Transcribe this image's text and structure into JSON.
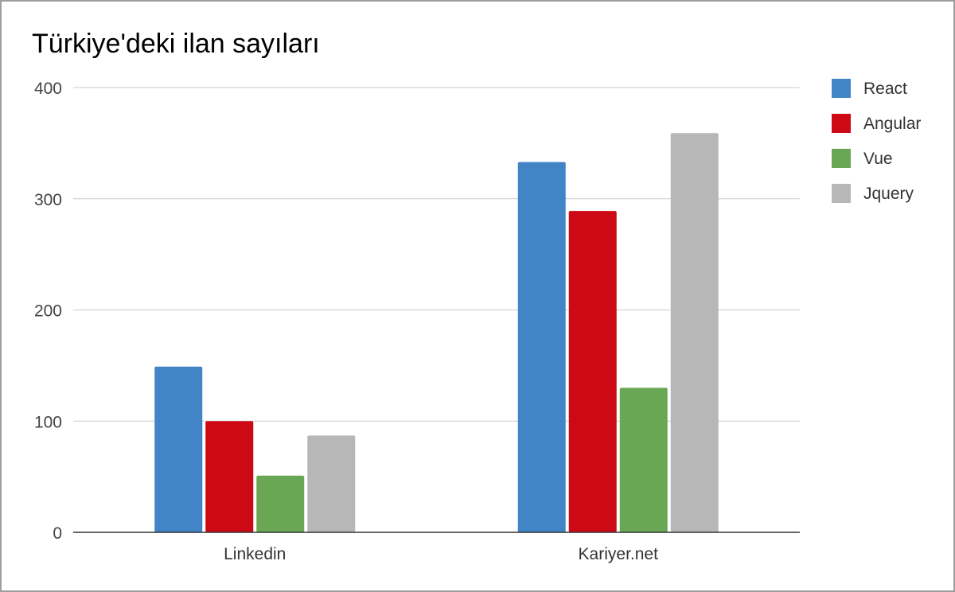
{
  "chart_data": {
    "type": "bar",
    "title": "Türkiye'deki ilan sayıları",
    "xlabel": "",
    "ylabel": "",
    "categories": [
      "Linkedin",
      "Kariyer.net"
    ],
    "series": [
      {
        "name": "React",
        "color": "#4285c6",
        "values": [
          149,
          333
        ]
      },
      {
        "name": "Angular",
        "color": "#cc0914",
        "values": [
          100,
          289
        ]
      },
      {
        "name": "Vue",
        "color": "#6aa754",
        "values": [
          51,
          130
        ]
      },
      {
        "name": "Jquery",
        "color": "#b7b7b7",
        "values": [
          87,
          359
        ]
      }
    ],
    "ylim": [
      0,
      400
    ],
    "yticks": [
      0,
      100,
      200,
      300,
      400
    ],
    "ytick_labels": [
      "0",
      "100",
      "200",
      "300",
      "400"
    ],
    "grid": true,
    "legend_position": "right"
  }
}
